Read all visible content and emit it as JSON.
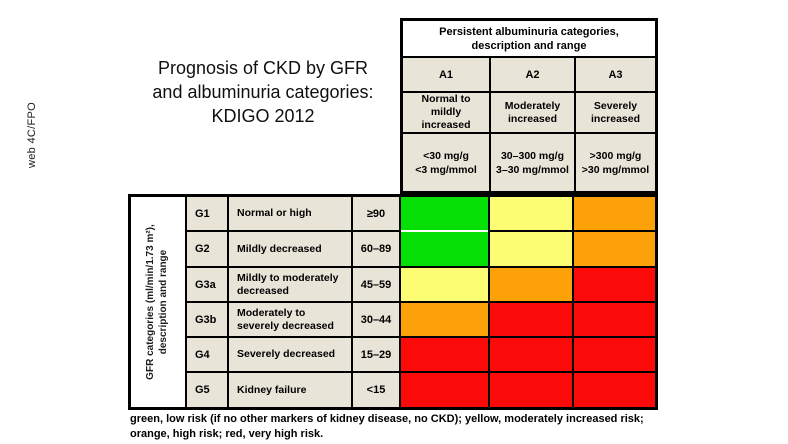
{
  "fpo_label": "web 4C/FPO",
  "title": "Prognosis of CKD by GFR\nand albuminuria categories:\nKDIGO 2012",
  "albuminuria_header": {
    "title": "Persistent albuminuria categories,\ndescription and range",
    "columns": [
      {
        "code": "A1",
        "description": "Normal to\nmildly\nincreased",
        "range": "<30 mg/g\n<3 mg/mmol"
      },
      {
        "code": "A2",
        "description": "Moderately\nincreased",
        "range": "30–300 mg/g\n3–30 mg/mmol"
      },
      {
        "code": "A3",
        "description": "Severely\nincreased",
        "range": ">300 mg/g\n>30 mg/mmol"
      }
    ]
  },
  "gfr_axis_label": "GFR categories (ml/min/1.73 m²),\ndescription and range",
  "gfr_rows": [
    {
      "code": "G1",
      "description": "Normal or high",
      "range": "≥90"
    },
    {
      "code": "G2",
      "description": "Mildly decreased",
      "range": "60–89"
    },
    {
      "code": "G3a",
      "description": "Mildly to moderately\ndecreased",
      "range": "45–59"
    },
    {
      "code": "G3b",
      "description": "Moderately to\nseverely decreased",
      "range": "30–44"
    },
    {
      "code": "G4",
      "description": "Severely decreased",
      "range": "15–29"
    },
    {
      "code": "G5",
      "description": "Kidney failure",
      "range": "<15"
    }
  ],
  "footnote": "green, low risk (if no other markers of kidney disease, no CKD); yellow, moderately increased risk;\norange, high risk; red, very high risk.",
  "colors": {
    "green": "#06df06",
    "yellow": "#fdfd74",
    "orange": "#fca108",
    "red": "#fb0a0a",
    "cell_bg": "#e8e4d8"
  },
  "chart_data": {
    "type": "heatmap",
    "title": "Prognosis of CKD by GFR and albuminuria categories: KDIGO 2012",
    "xlabel": "Persistent albuminuria categories, description and range",
    "ylabel": "GFR categories (ml/min/1.73 m²), description and range",
    "x_categories": [
      "A1",
      "A2",
      "A3"
    ],
    "x_descriptions": [
      "Normal to mildly increased",
      "Moderately increased",
      "Severely increased"
    ],
    "x_ranges": [
      "<30 mg/g (<3 mg/mmol)",
      "30–300 mg/g (3–30 mg/mmol)",
      ">300 mg/g (>30 mg/mmol)"
    ],
    "y_categories": [
      "G1",
      "G2",
      "G3a",
      "G3b",
      "G4",
      "G5"
    ],
    "y_descriptions": [
      "Normal or high",
      "Mildly decreased",
      "Mildly to moderately decreased",
      "Moderately to severely decreased",
      "Severely decreased",
      "Kidney failure"
    ],
    "y_ranges": [
      "≥90",
      "60–89",
      "45–59",
      "30–44",
      "15–29",
      "<15"
    ],
    "cells": [
      [
        "green",
        "yellow",
        "orange"
      ],
      [
        "green",
        "yellow",
        "orange"
      ],
      [
        "yellow",
        "orange",
        "red"
      ],
      [
        "orange",
        "red",
        "red"
      ],
      [
        "red",
        "red",
        "red"
      ],
      [
        "red",
        "red",
        "red"
      ]
    ],
    "risk_legend": {
      "green": "low risk (if no other markers of kidney disease, no CKD)",
      "yellow": "moderately increased risk",
      "orange": "high risk",
      "red": "very high risk"
    }
  }
}
